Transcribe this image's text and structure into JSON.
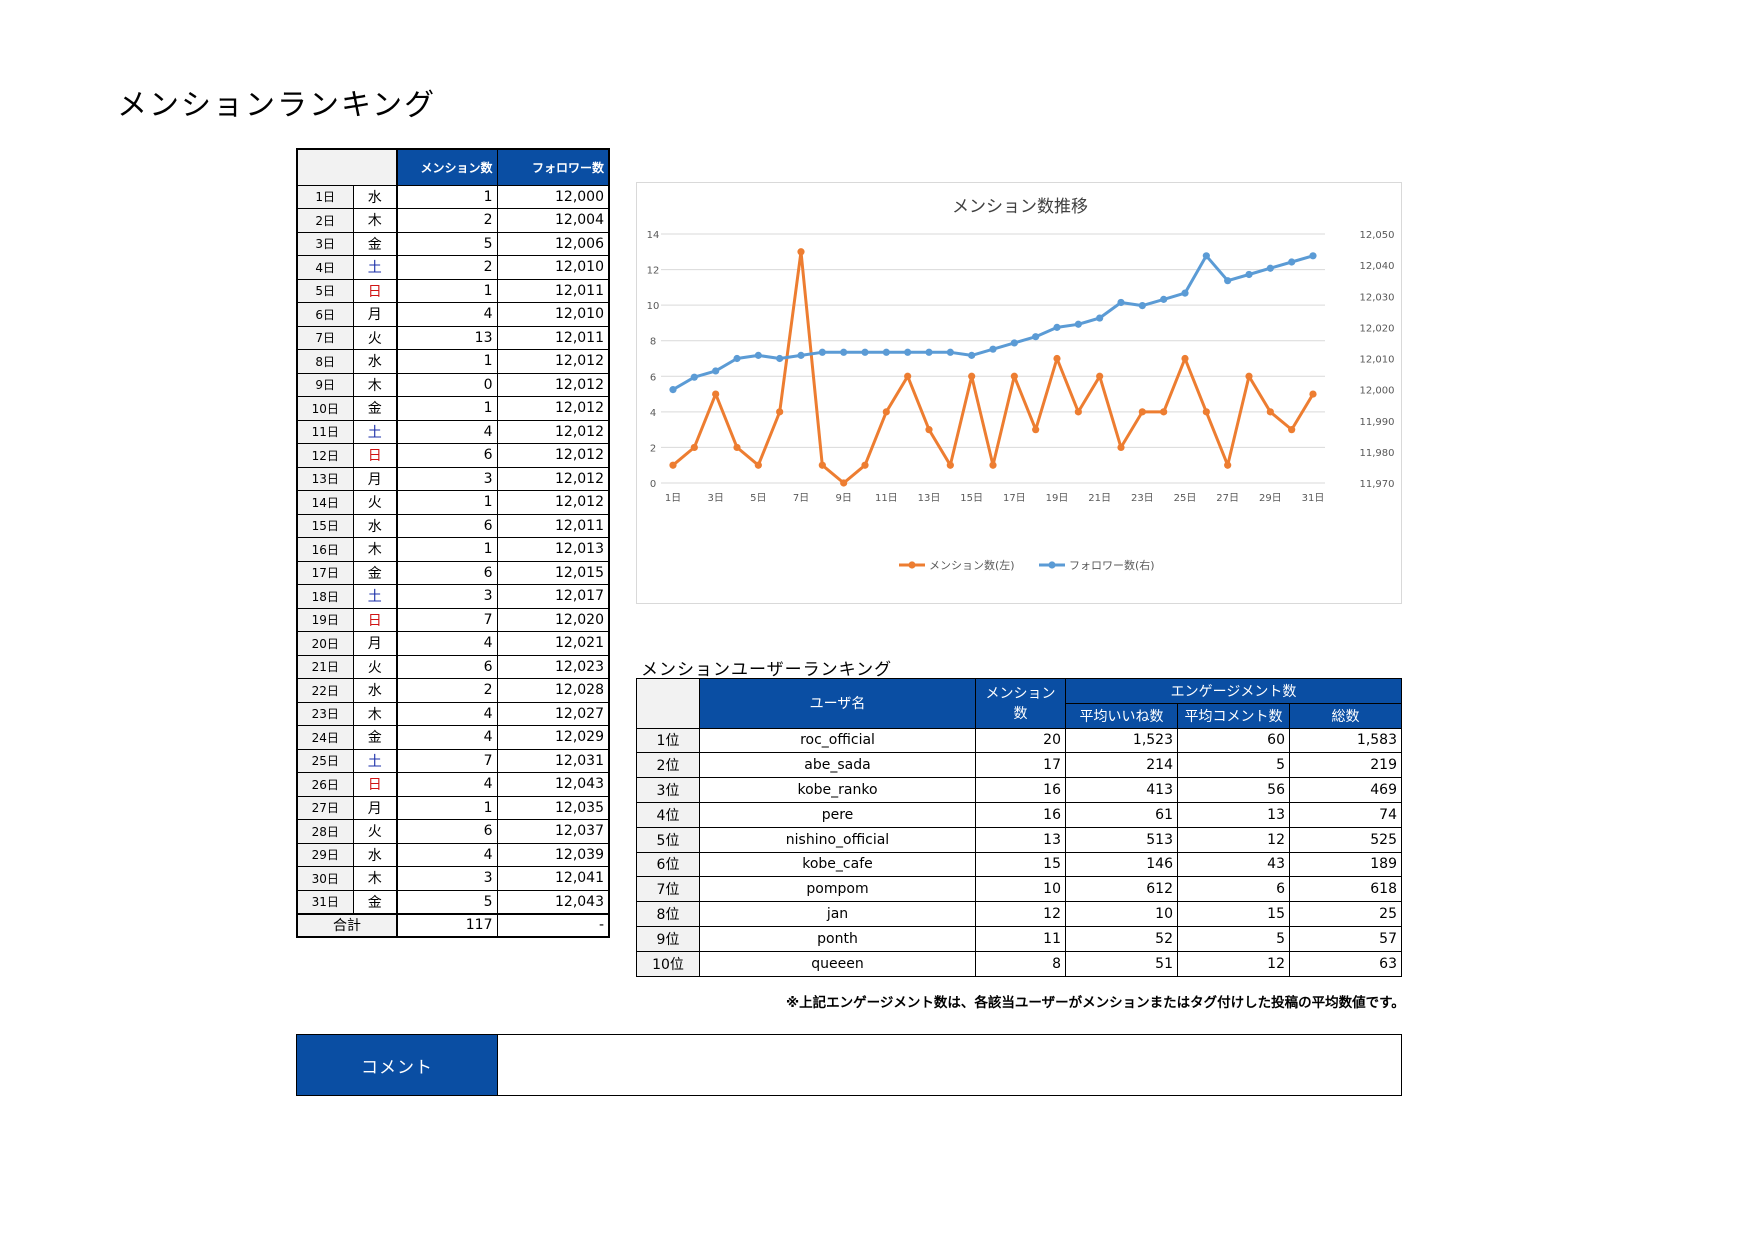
{
  "page": {
    "title": "メンションランキング"
  },
  "daily_table": {
    "header_mentions": "メンション数",
    "header_followers": "フォロワー数",
    "rows": [
      {
        "day": "1日",
        "weekday": "水",
        "kind": "",
        "mentions": "1",
        "followers": "12,000"
      },
      {
        "day": "2日",
        "weekday": "木",
        "kind": "",
        "mentions": "2",
        "followers": "12,004"
      },
      {
        "day": "3日",
        "weekday": "金",
        "kind": "",
        "mentions": "5",
        "followers": "12,006"
      },
      {
        "day": "4日",
        "weekday": "土",
        "kind": "sat",
        "mentions": "2",
        "followers": "12,010"
      },
      {
        "day": "5日",
        "weekday": "日",
        "kind": "sun",
        "mentions": "1",
        "followers": "12,011"
      },
      {
        "day": "6日",
        "weekday": "月",
        "kind": "",
        "mentions": "4",
        "followers": "12,010"
      },
      {
        "day": "7日",
        "weekday": "火",
        "kind": "",
        "mentions": "13",
        "followers": "12,011"
      },
      {
        "day": "8日",
        "weekday": "水",
        "kind": "",
        "mentions": "1",
        "followers": "12,012"
      },
      {
        "day": "9日",
        "weekday": "木",
        "kind": "",
        "mentions": "0",
        "followers": "12,012"
      },
      {
        "day": "10日",
        "weekday": "金",
        "kind": "",
        "mentions": "1",
        "followers": "12,012"
      },
      {
        "day": "11日",
        "weekday": "土",
        "kind": "sat",
        "mentions": "4",
        "followers": "12,012"
      },
      {
        "day": "12日",
        "weekday": "日",
        "kind": "sun",
        "mentions": "6",
        "followers": "12,012"
      },
      {
        "day": "13日",
        "weekday": "月",
        "kind": "",
        "mentions": "3",
        "followers": "12,012"
      },
      {
        "day": "14日",
        "weekday": "火",
        "kind": "",
        "mentions": "1",
        "followers": "12,012"
      },
      {
        "day": "15日",
        "weekday": "水",
        "kind": "",
        "mentions": "6",
        "followers": "12,011"
      },
      {
        "day": "16日",
        "weekday": "木",
        "kind": "",
        "mentions": "1",
        "followers": "12,013"
      },
      {
        "day": "17日",
        "weekday": "金",
        "kind": "",
        "mentions": "6",
        "followers": "12,015"
      },
      {
        "day": "18日",
        "weekday": "土",
        "kind": "sat",
        "mentions": "3",
        "followers": "12,017"
      },
      {
        "day": "19日",
        "weekday": "日",
        "kind": "sun",
        "mentions": "7",
        "followers": "12,020"
      },
      {
        "day": "20日",
        "weekday": "月",
        "kind": "",
        "mentions": "4",
        "followers": "12,021"
      },
      {
        "day": "21日",
        "weekday": "火",
        "kind": "",
        "mentions": "6",
        "followers": "12,023"
      },
      {
        "day": "22日",
        "weekday": "水",
        "kind": "",
        "mentions": "2",
        "followers": "12,028"
      },
      {
        "day": "23日",
        "weekday": "木",
        "kind": "",
        "mentions": "4",
        "followers": "12,027"
      },
      {
        "day": "24日",
        "weekday": "金",
        "kind": "",
        "mentions": "4",
        "followers": "12,029"
      },
      {
        "day": "25日",
        "weekday": "土",
        "kind": "sat",
        "mentions": "7",
        "followers": "12,031"
      },
      {
        "day": "26日",
        "weekday": "日",
        "kind": "sun",
        "mentions": "4",
        "followers": "12,043"
      },
      {
        "day": "27日",
        "weekday": "月",
        "kind": "",
        "mentions": "1",
        "followers": "12,035"
      },
      {
        "day": "28日",
        "weekday": "火",
        "kind": "",
        "mentions": "6",
        "followers": "12,037"
      },
      {
        "day": "29日",
        "weekday": "水",
        "kind": "",
        "mentions": "4",
        "followers": "12,039"
      },
      {
        "day": "30日",
        "weekday": "木",
        "kind": "",
        "mentions": "3",
        "followers": "12,041"
      },
      {
        "day": "31日",
        "weekday": "金",
        "kind": "",
        "mentions": "5",
        "followers": "12,043"
      }
    ],
    "total_label": "合計",
    "total_mentions": "117",
    "total_followers": "-"
  },
  "chart_data": {
    "type": "line",
    "title": "メンション数推移",
    "x": [
      1,
      2,
      3,
      4,
      5,
      6,
      7,
      8,
      9,
      10,
      11,
      12,
      13,
      14,
      15,
      16,
      17,
      18,
      19,
      20,
      21,
      22,
      23,
      24,
      25,
      26,
      27,
      28,
      29,
      30,
      31
    ],
    "x_tick_labels": [
      "1日",
      "3日",
      "5日",
      "7日",
      "9日",
      "11日",
      "13日",
      "15日",
      "17日",
      "19日",
      "21日",
      "23日",
      "25日",
      "27日",
      "29日",
      "31日"
    ],
    "y_left_range": [
      0,
      14
    ],
    "y_left_ticks": [
      "0",
      "2",
      "4",
      "6",
      "8",
      "10",
      "12",
      "14"
    ],
    "y_right_range": [
      11970,
      12050
    ],
    "y_right_ticks": [
      "11,970",
      "11,980",
      "11,990",
      "12,000",
      "12,010",
      "12,020",
      "12,030",
      "12,040",
      "12,050"
    ],
    "grid": true,
    "legend_position": "bottom",
    "series": [
      {
        "name": "メンション数(左)",
        "axis": "left",
        "color": "#ed7d31",
        "values": [
          1,
          2,
          5,
          2,
          1,
          4,
          13,
          1,
          0,
          1,
          4,
          6,
          3,
          1,
          6,
          1,
          6,
          3,
          7,
          4,
          6,
          2,
          4,
          4,
          7,
          4,
          1,
          6,
          4,
          3,
          5
        ]
      },
      {
        "name": "フォロワー数(右)",
        "axis": "right",
        "color": "#5b9bd5",
        "values": [
          12000,
          12004,
          12006,
          12010,
          12011,
          12010,
          12011,
          12012,
          12012,
          12012,
          12012,
          12012,
          12012,
          12012,
          12011,
          12013,
          12015,
          12017,
          12020,
          12021,
          12023,
          12028,
          12027,
          12029,
          12031,
          12043,
          12035,
          12037,
          12039,
          12041,
          12043
        ]
      }
    ]
  },
  "ranking": {
    "title": "メンションユーザーランキング",
    "header_user": "ユーザ名",
    "header_mentions": "メンション数",
    "header_engagement": "エンゲージメント数",
    "header_avg_likes": "平均いいね数",
    "header_avg_comments": "平均コメント数",
    "header_total": "総数",
    "rows": [
      {
        "rank": "1位",
        "user": "roc_official",
        "mentions": "20",
        "likes": "1,523",
        "comments": "60",
        "total": "1,583"
      },
      {
        "rank": "2位",
        "user": "abe_sada",
        "mentions": "17",
        "likes": "214",
        "comments": "5",
        "total": "219"
      },
      {
        "rank": "3位",
        "user": "kobe_ranko",
        "mentions": "16",
        "likes": "413",
        "comments": "56",
        "total": "469"
      },
      {
        "rank": "4位",
        "user": "pere",
        "mentions": "16",
        "likes": "61",
        "comments": "13",
        "total": "74"
      },
      {
        "rank": "5位",
        "user": "nishino_official",
        "mentions": "13",
        "likes": "513",
        "comments": "12",
        "total": "525"
      },
      {
        "rank": "6位",
        "user": "kobe_cafe",
        "mentions": "15",
        "likes": "146",
        "comments": "43",
        "total": "189"
      },
      {
        "rank": "7位",
        "user": "pompom",
        "mentions": "10",
        "likes": "612",
        "comments": "6",
        "total": "618"
      },
      {
        "rank": "8位",
        "user": "jan",
        "mentions": "12",
        "likes": "10",
        "comments": "15",
        "total": "25"
      },
      {
        "rank": "9位",
        "user": "ponth",
        "mentions": "11",
        "likes": "52",
        "comments": "5",
        "total": "57"
      },
      {
        "rank": "10位",
        "user": "queeen",
        "mentions": "8",
        "likes": "51",
        "comments": "12",
        "total": "63"
      }
    ],
    "note": "※上記エンゲージメント数は、各該当ユーザーがメンションまたはタグ付けした投稿の平均数値です。"
  },
  "comment": {
    "label": "コメント",
    "value": ""
  }
}
